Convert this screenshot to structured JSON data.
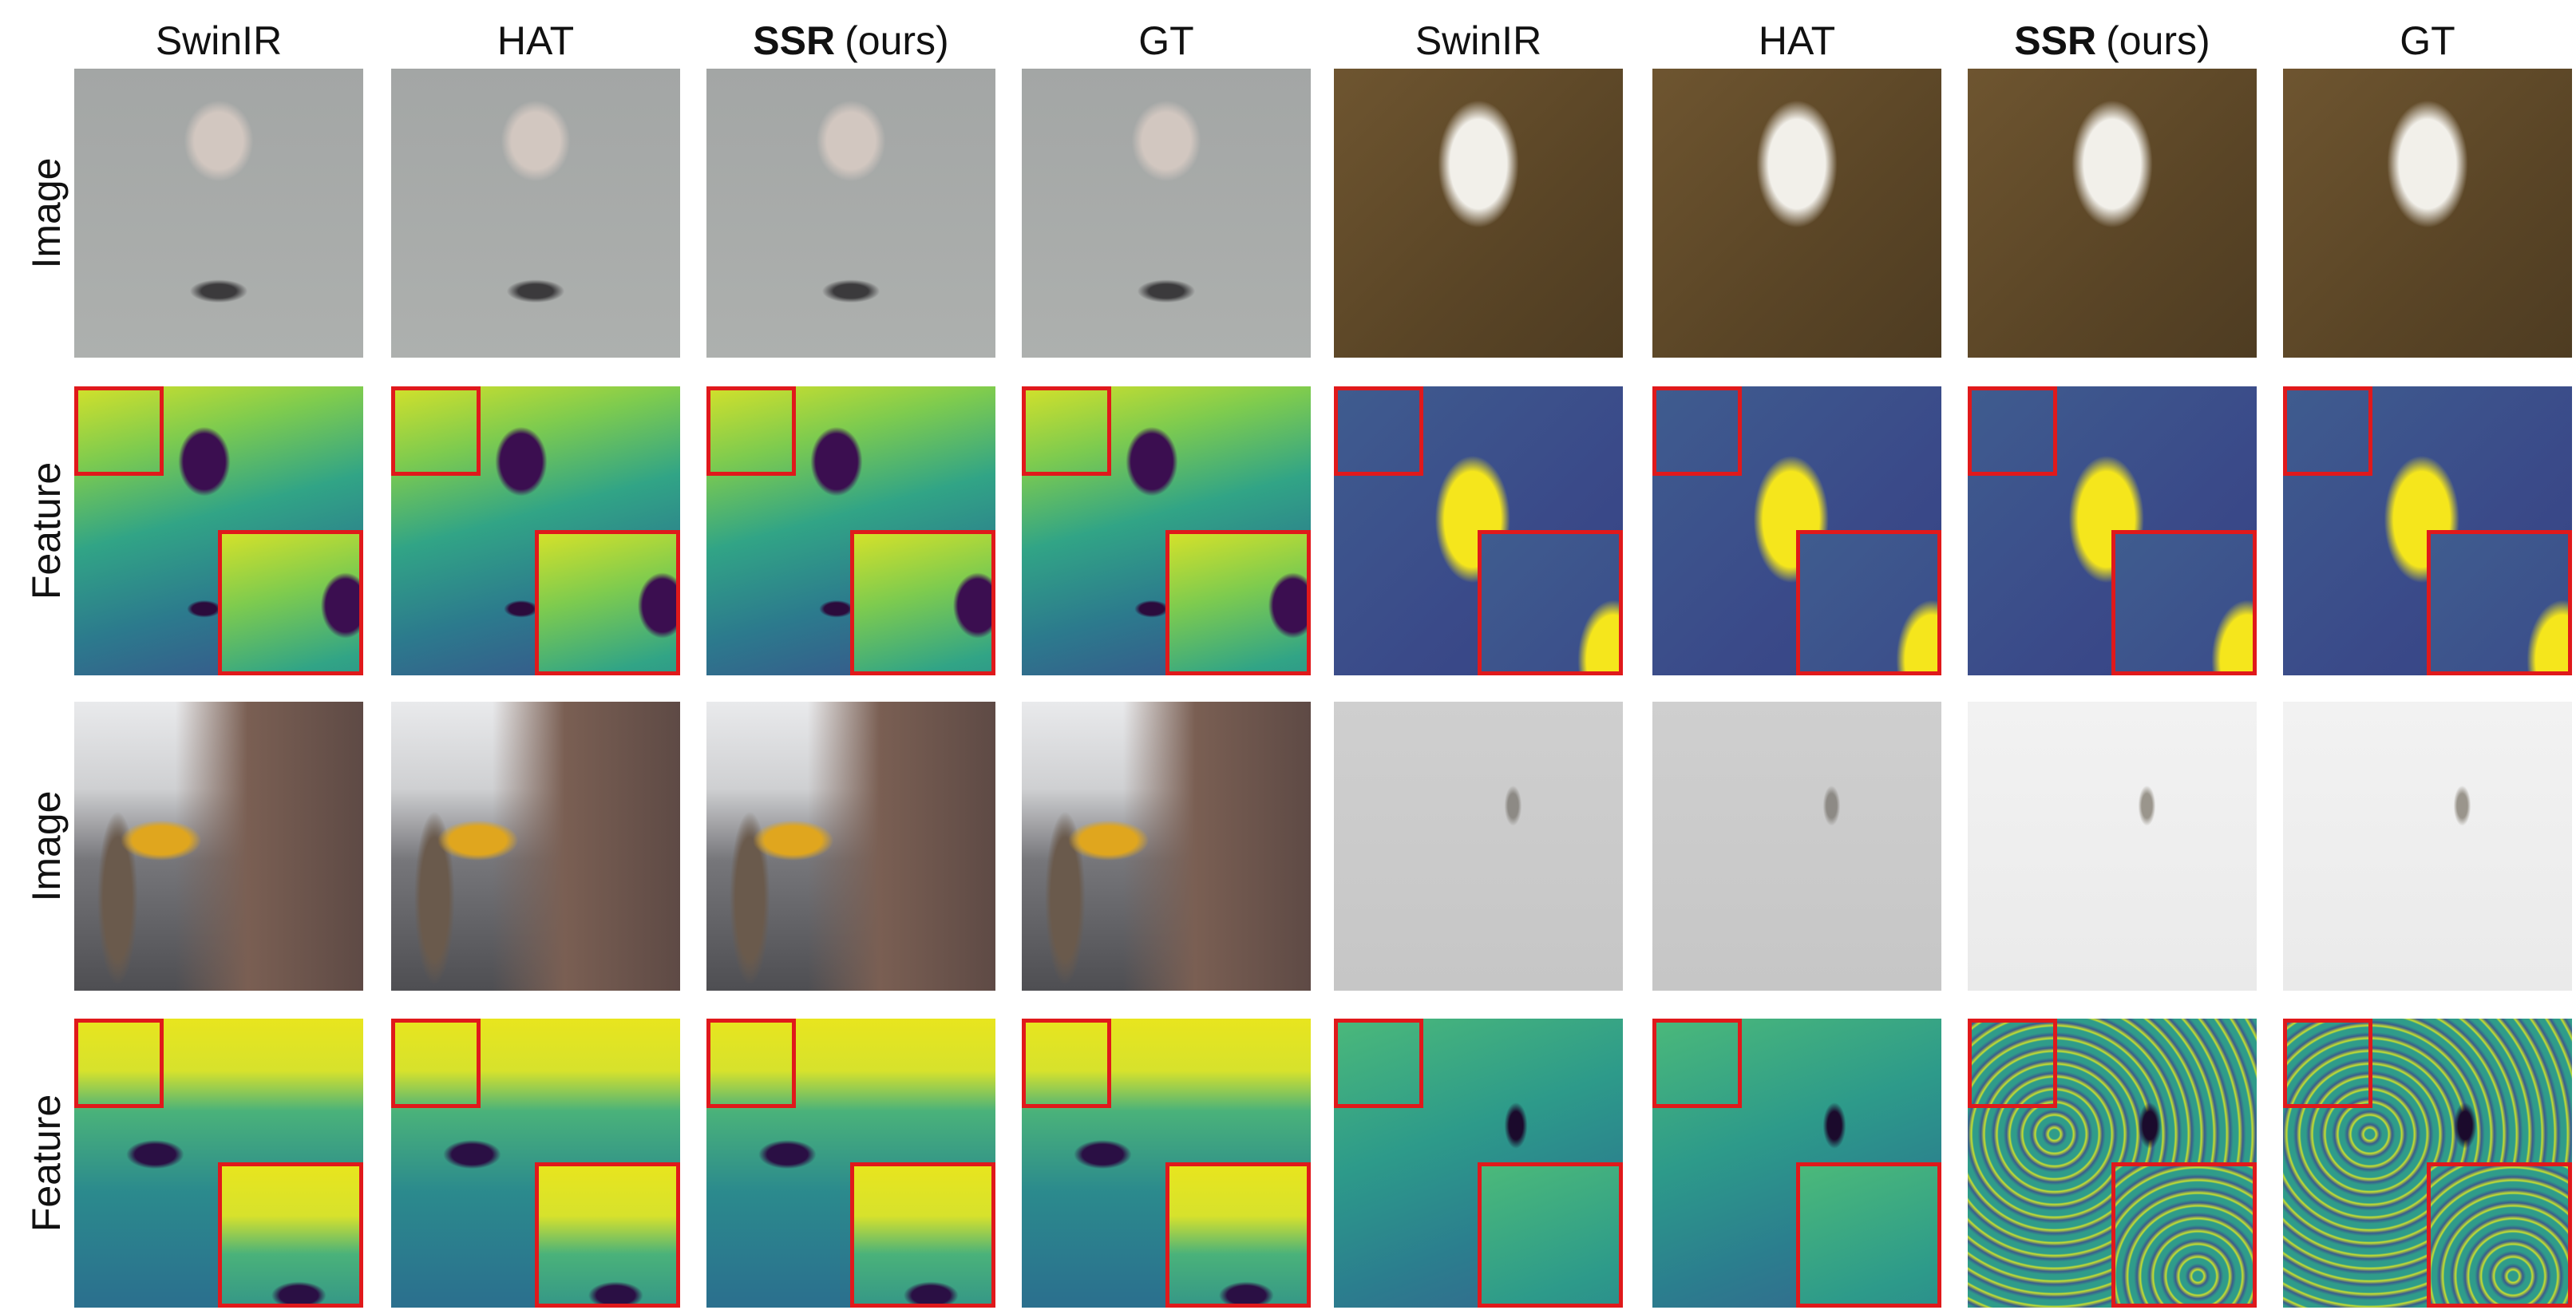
{
  "columns": [
    {
      "name": "SwinIR"
    },
    {
      "name": "HAT"
    },
    {
      "name": "SSR",
      "bold": true,
      "note": "(ours)"
    },
    {
      "name": "GT"
    },
    {
      "name": "SwinIR"
    },
    {
      "name": "HAT"
    },
    {
      "name": "SSR",
      "bold": true,
      "note": "(ours)"
    },
    {
      "name": "GT"
    }
  ],
  "rows": [
    "Image",
    "Feature",
    "Image",
    "Feature"
  ]
}
